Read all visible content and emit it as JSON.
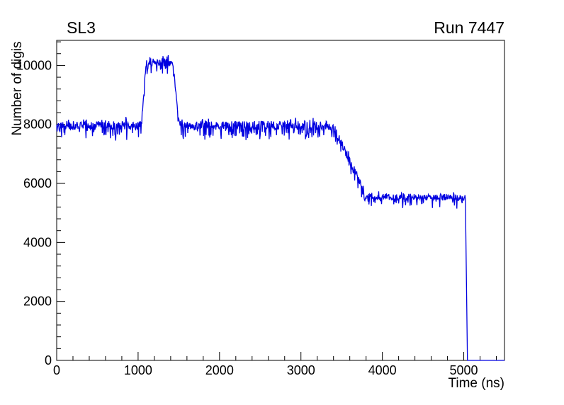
{
  "header": {
    "title_left": "SL3",
    "title_right": "Run 7447"
  },
  "chart_data": {
    "type": "line",
    "title": "SL3",
    "annotation": "Run 7447",
    "xlabel": "Time (ns)",
    "ylabel": "Number of digis",
    "xlim": [
      0,
      5500
    ],
    "ylim": [
      0,
      10850
    ],
    "x_ticks": [
      0,
      1000,
      2000,
      3000,
      4000,
      5000
    ],
    "y_ticks": [
      0,
      2000,
      4000,
      6000,
      8000,
      10000
    ],
    "x_minor_step": 200,
    "y_minor_step": 400,
    "grid": false,
    "legend": "none",
    "line_color": "#0000e0",
    "series": [
      {
        "name": "number-of-digis-vs-time",
        "bin_width": 5,
        "segments": [
          {
            "x_start": 0,
            "x_end": 1040,
            "y_start": 7950,
            "y_end": 7950,
            "noise": 300
          },
          {
            "x_start": 1040,
            "x_end": 1100,
            "y_start": 7950,
            "y_end": 10100,
            "noise": 250
          },
          {
            "x_start": 1100,
            "x_end": 1420,
            "y_start": 10100,
            "y_end": 10100,
            "noise": 280
          },
          {
            "x_start": 1420,
            "x_end": 1510,
            "y_start": 10100,
            "y_end": 7950,
            "noise": 250
          },
          {
            "x_start": 1510,
            "x_end": 3400,
            "y_start": 7950,
            "y_end": 7950,
            "noise": 300
          },
          {
            "x_start": 3400,
            "x_end": 3790,
            "y_start": 7900,
            "y_end": 5650,
            "noise": 300
          },
          {
            "x_start": 3790,
            "x_end": 5020,
            "y_start": 5550,
            "y_end": 5500,
            "noise": 220
          },
          {
            "x_start": 5020,
            "x_end": 5045,
            "y_start": 5450,
            "y_end": 0,
            "noise": 0
          },
          {
            "x_start": 5045,
            "x_end": 5500,
            "y_start": 0,
            "y_end": 0,
            "noise": 0
          }
        ]
      }
    ]
  }
}
